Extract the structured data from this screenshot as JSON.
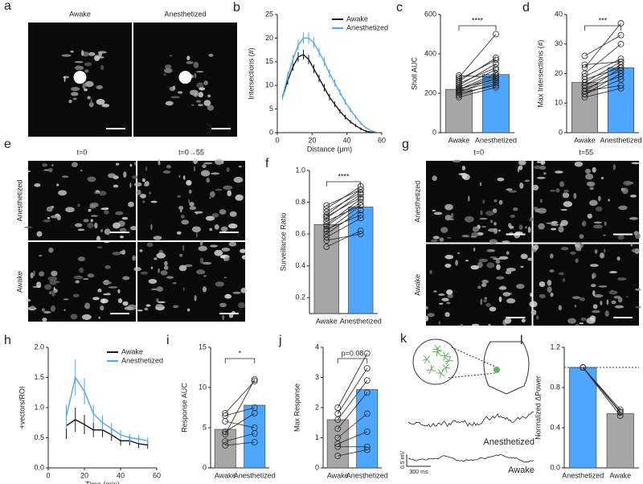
{
  "chart_data": [
    {
      "type": "image",
      "panel": "a",
      "col_labels": [
        "Awake",
        "Anesthetized"
      ]
    },
    {
      "type": "line",
      "panel": "b",
      "xlabel": "Distance (μm)",
      "ylabel": "Intersections (#)",
      "legend": "upper right",
      "x": [
        3,
        6,
        9,
        12,
        15,
        18,
        21,
        24,
        27,
        30,
        33,
        36,
        39,
        42,
        45,
        48,
        51,
        54,
        57
      ],
      "xlim": [
        0,
        60
      ],
      "xticks": [
        0,
        20,
        40,
        60
      ],
      "ylim": [
        0,
        25
      ],
      "yticks": [
        0,
        5,
        10,
        15,
        20,
        25
      ],
      "series": [
        {
          "name": "Awake",
          "color": "#1a1a1a",
          "values": [
            7.5,
            11,
            14,
            16,
            16.5,
            15.5,
            13.5,
            11.5,
            9.5,
            7.5,
            6,
            4.5,
            3.3,
            2.3,
            1.5,
            0.8,
            0.3,
            0.1,
            0
          ],
          "errors": [
            0.6,
            0.8,
            0.9,
            1,
            1,
            1,
            0.9,
            0.8,
            0.8,
            0.7,
            0.6,
            0.5,
            0.5,
            0.4,
            0.3,
            0.3,
            0.2,
            0.1,
            0
          ]
        },
        {
          "name": "Anesthetized",
          "color": "#4da6ff",
          "values": [
            7.5,
            12,
            15.5,
            18.5,
            20,
            20,
            19,
            17,
            15,
            12.5,
            10.5,
            8.5,
            6.5,
            4.8,
            3.3,
            2,
            1,
            0.4,
            0.1
          ],
          "errors": [
            0.6,
            0.9,
            1,
            1.1,
            1.2,
            1.2,
            1.1,
            1,
            1,
            0.9,
            0.8,
            0.7,
            0.6,
            0.5,
            0.4,
            0.3,
            0.2,
            0.1,
            0.1
          ]
        }
      ]
    },
    {
      "type": "bar",
      "panel": "c",
      "ylabel": "Sholl AUC",
      "annotation": "****",
      "categories": [
        "Awake",
        "Anesthetized"
      ],
      "values": [
        220,
        295
      ],
      "colors": [
        "#a6a6a6",
        "#4da6ff"
      ],
      "ylim": [
        0,
        600
      ],
      "yticks": [
        0,
        200,
        400,
        600
      ],
      "paired": [
        [
          180,
          190,
          200,
          205,
          210,
          215,
          220,
          225,
          230,
          240,
          250,
          260,
          270,
          280,
          290
        ],
        [
          230,
          250,
          240,
          280,
          260,
          290,
          300,
          270,
          320,
          350,
          330,
          380,
          370,
          500,
          280
        ]
      ]
    },
    {
      "type": "bar",
      "panel": "d",
      "ylabel": "Max Intersections (#)",
      "annotation": "***",
      "categories": [
        "Awake",
        "Anesthetized"
      ],
      "values": [
        17,
        22
      ],
      "colors": [
        "#a6a6a6",
        "#4da6ff"
      ],
      "ylim": [
        0,
        40
      ],
      "yticks": [
        0,
        10,
        20,
        30,
        40
      ],
      "paired": [
        [
          12,
          13,
          13,
          14,
          14,
          15,
          16,
          16,
          17,
          18,
          19,
          20,
          22,
          23,
          26
        ],
        [
          15,
          18,
          20,
          16,
          22,
          19,
          21,
          23,
          24,
          22,
          25,
          30,
          37,
          24,
          33
        ]
      ]
    },
    {
      "type": "image",
      "panel": "e",
      "col_labels": [
        "t=0",
        "t=0→55"
      ],
      "row_labels": [
        "Anesthetized",
        "Awake"
      ]
    },
    {
      "type": "bar",
      "panel": "f",
      "ylabel": "Surveillance Ratio",
      "annotation": "****",
      "categories": [
        "Awake",
        "Anesthetized"
      ],
      "values": [
        0.66,
        0.77
      ],
      "colors": [
        "#a6a6a6",
        "#4da6ff"
      ],
      "ylim": [
        0.1,
        1
      ],
      "yticks": [
        0.2,
        0.4,
        0.6,
        0.8,
        {
          "value": 1,
          "label": "1.0"
        }
      ],
      "paired": [
        [
          0.52,
          0.56,
          0.58,
          0.6,
          0.62,
          0.63,
          0.65,
          0.66,
          0.68,
          0.7,
          0.71,
          0.72,
          0.74,
          0.76,
          0.78
        ],
        [
          0.62,
          0.6,
          0.7,
          0.75,
          0.78,
          0.72,
          0.8,
          0.82,
          0.78,
          0.85,
          0.83,
          0.88,
          0.86,
          0.9,
          0.88
        ]
      ]
    },
    {
      "type": "image",
      "panel": "g",
      "col_labels": [
        "t=0",
        "t=55"
      ],
      "row_labels": [
        "Anesthetized",
        "Awake"
      ]
    },
    {
      "type": "line",
      "panel": "h",
      "xlabel": "Time (min)",
      "ylabel": "+vectors/ROI",
      "legend": "upper right",
      "x": [
        10,
        15,
        20,
        25,
        30,
        35,
        40,
        45,
        50,
        55
      ],
      "xlim": [
        0,
        60
      ],
      "xticks": [
        0,
        20,
        40,
        60
      ],
      "ylim": [
        0,
        2
      ],
      "yticks": [
        {
          "value": 0,
          "label": "0.0"
        },
        0.5,
        {
          "value": 1,
          "label": "1.0"
        },
        1.5,
        {
          "value": 2,
          "label": "2.0"
        }
      ],
      "series": [
        {
          "name": "Awake",
          "color": "#1a1a1a",
          "values": [
            0.7,
            0.8,
            0.72,
            0.63,
            0.63,
            0.55,
            0.45,
            0.45,
            0.4,
            0.38
          ],
          "errors": [
            0.22,
            0.2,
            0.16,
            0.12,
            0.12,
            0.1,
            0.08,
            0.08,
            0.07,
            0.06
          ]
        },
        {
          "name": "Anesthetized",
          "color": "#4da6ff",
          "values": [
            0.85,
            1.5,
            1.27,
            0.9,
            0.75,
            0.65,
            0.55,
            0.5,
            0.48,
            0.45
          ],
          "errors": [
            0.2,
            0.3,
            0.22,
            0.15,
            0.12,
            0.1,
            0.08,
            0.07,
            0.07,
            0.06
          ]
        }
      ]
    },
    {
      "type": "bar",
      "panel": "i",
      "ylabel": "Response AUC",
      "annotation": "*",
      "categories": [
        "Awake",
        "Anesthetized"
      ],
      "values": [
        4.8,
        7.8
      ],
      "colors": [
        "#a6a6a6",
        "#4da6ff"
      ],
      "ylim": [
        0,
        15
      ],
      "yticks": [
        0,
        5,
        10,
        15
      ],
      "paired": [
        [
          2.8,
          3.3,
          4.5,
          5.8,
          6.5,
          6.8,
          4.2
        ],
        [
          3.2,
          4.3,
          6.8,
          5,
          7.5,
          10.8,
          11
        ]
      ]
    },
    {
      "type": "bar",
      "panel": "j",
      "ylabel": "Max Response",
      "annotation": "p=0.08",
      "categories": [
        "Awake",
        "Anesthetized"
      ],
      "values": [
        1.6,
        2.6
      ],
      "colors": [
        "#a6a6a6",
        "#4da6ff"
      ],
      "ylim": [
        0,
        4
      ],
      "yticks": [
        0,
        1,
        2,
        3,
        4
      ],
      "paired": [
        [
          0.4,
          0.7,
          0.8,
          1,
          1.3,
          1.6,
          1.8,
          2
        ],
        [
          0.6,
          0.7,
          1.2,
          1.8,
          2.5,
          2.9,
          3.3,
          3.8
        ]
      ]
    },
    {
      "type": "schematic",
      "panel": "k",
      "trace_labels": [
        "Anesthetized",
        "Awake"
      ],
      "scale_labels": [
        "0.5 mV",
        "300 ms"
      ]
    },
    {
      "type": "bar",
      "panel": "l",
      "ylabel": "Normalized ΔPower",
      "refline": 1,
      "categories": [
        "Anesthetized",
        "Awake"
      ],
      "values": [
        1,
        0.54
      ],
      "colors": [
        "#4da6ff",
        "#a6a6a6"
      ],
      "ylim": [
        0,
        1.2
      ],
      "yticks": [
        {
          "value": 0,
          "label": "0.0"
        },
        0.4,
        0.8,
        1.2
      ],
      "paired": [
        [
          1,
          1,
          1,
          1
        ],
        [
          0.52,
          0.55,
          0.56,
          0.58
        ]
      ]
    }
  ]
}
